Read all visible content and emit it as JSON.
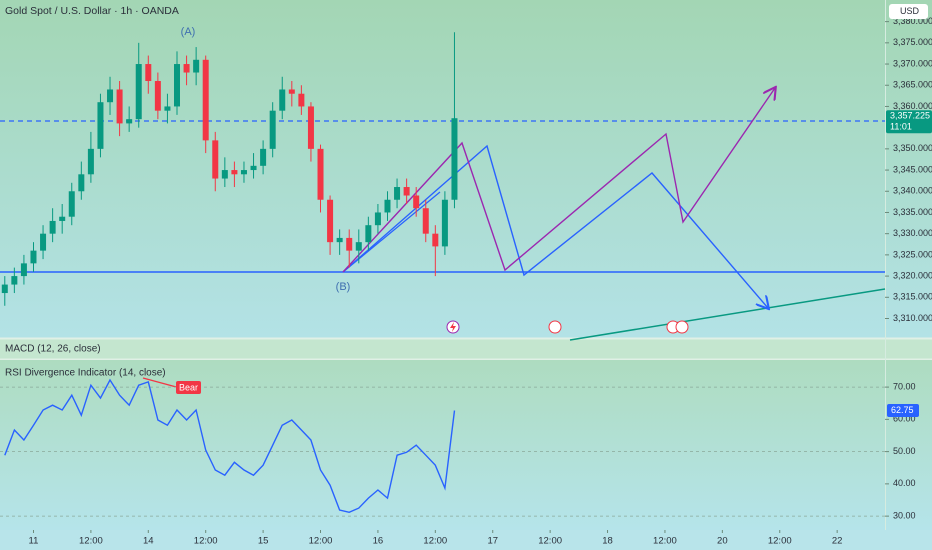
{
  "indicators": {
    "macd": "MACD (12, 26, close)"
  },
  "chart_data": [
    {
      "type": "candlestick",
      "title": "Gold Spot / U.S. Dollar · 1h · OANDA",
      "currency": "USD",
      "last_price": {
        "value": 3357.225,
        "label": "3,357.225"
      },
      "countdown": "11:01",
      "annotations": [
        "(A)",
        "(B)"
      ],
      "up_color": "#089981",
      "down_color": "#f23645",
      "xlim": [
        -7,
        178
      ],
      "ylim": [
        3305.4,
        3385.1
      ],
      "yticks": [
        {
          "value": 3310,
          "label": "3,310.000"
        },
        {
          "value": 3315,
          "label": "3,315.000"
        },
        {
          "value": 3320,
          "label": "3,320.000"
        },
        {
          "value": 3325,
          "label": "3,325.000"
        },
        {
          "value": 3330,
          "label": "3,330.000"
        },
        {
          "value": 3335,
          "label": "3,335.000"
        },
        {
          "value": 3340,
          "label": "3,340.000"
        },
        {
          "value": 3345,
          "label": "3,345.000"
        },
        {
          "value": 3350,
          "label": "3,350.000"
        },
        {
          "value": 3360,
          "label": "3,360.000"
        },
        {
          "value": 3365,
          "label": "3,365.000"
        },
        {
          "value": 3370,
          "label": "3,370.000"
        },
        {
          "value": 3375,
          "label": "3,375.000"
        },
        {
          "value": 3380,
          "label": "3,380.000"
        }
      ],
      "x": [
        -6,
        -4,
        -2,
        0,
        2,
        4,
        6,
        8,
        10,
        12,
        14,
        16,
        18,
        20,
        22,
        24,
        26,
        28,
        30,
        32,
        34,
        36,
        38,
        40,
        42,
        44,
        46,
        48,
        50,
        52,
        54,
        56,
        58,
        60,
        62,
        64,
        66,
        68,
        70,
        72,
        74,
        76,
        78,
        80,
        82,
        84,
        86,
        88
      ],
      "open": [
        3316,
        3318,
        3320,
        3323,
        3326,
        3330,
        3333,
        3334,
        3340,
        3344,
        3350,
        3361,
        3364,
        3356,
        3357,
        3370,
        3366,
        3359,
        3360,
        3370,
        3368,
        3371,
        3352,
        3343,
        3345,
        3344,
        3345,
        3346,
        3350,
        3359,
        3364,
        3363,
        3360,
        3350,
        3338,
        3328,
        3329,
        3326,
        3328,
        3332,
        3335,
        3338,
        3341,
        3339,
        3336,
        3330,
        3327,
        3338
      ],
      "high": [
        3320,
        3322,
        3325,
        3328,
        3332,
        3336,
        3337,
        3342,
        3347,
        3354,
        3363,
        3367,
        3366,
        3360,
        3375,
        3372,
        3368,
        3363,
        3373,
        3372,
        3374,
        3372,
        3354,
        3348,
        3347,
        3347,
        3349,
        3352,
        3361,
        3367,
        3366,
        3365,
        3361,
        3351,
        3339,
        3331,
        3331,
        3331,
        3334,
        3337,
        3340,
        3343,
        3343,
        3341,
        3338,
        3332,
        3340,
        3377.5
      ],
      "low": [
        3313,
        3316,
        3318,
        3321,
        3324,
        3328,
        3330,
        3332,
        3338,
        3342,
        3348,
        3358,
        3353,
        3354,
        3355,
        3363,
        3357,
        3356,
        3358,
        3365,
        3365,
        3349,
        3340,
        3341,
        3341,
        3342,
        3343,
        3344,
        3348,
        3357,
        3360,
        3358,
        3347,
        3335,
        3325,
        3325,
        3322,
        3323,
        3326,
        3330,
        3333,
        3336,
        3337,
        3334,
        3328,
        3320,
        3325,
        3336
      ],
      "close": [
        3318,
        3320,
        3323,
        3326,
        3330,
        3333,
        3334,
        3340,
        3344,
        3350,
        3361,
        3364,
        3356,
        3357,
        3370,
        3366,
        3359,
        3360,
        3370,
        3368,
        3371,
        3352,
        3343,
        3345,
        3344,
        3345,
        3346,
        3350,
        3359,
        3364,
        3363,
        3360,
        3350,
        3338,
        3328,
        3329,
        3326,
        3328,
        3332,
        3335,
        3338,
        3341,
        3339,
        3336,
        3330,
        3327,
        3338,
        3357.225
      ]
    },
    {
      "type": "line",
      "title": "RSI Divergence Indicator (14, close)",
      "annotation": "Bear",
      "xlim": [
        -7,
        178
      ],
      "ylim": [
        25.7,
        78.4
      ],
      "yticks": [
        {
          "value": 30,
          "label": "30.00"
        },
        {
          "value": 40,
          "label": "40.00"
        },
        {
          "value": 50,
          "label": "50.00"
        },
        {
          "value": 60,
          "label": "60.00"
        },
        {
          "value": 70,
          "label": "70.00"
        }
      ],
      "hlines": [
        70,
        50,
        30
      ],
      "xticks": [
        {
          "value": 0,
          "label": "11"
        },
        {
          "value": 12,
          "label": "12:00"
        },
        {
          "value": 24,
          "label": "14"
        },
        {
          "value": 36,
          "label": "12:00"
        },
        {
          "value": 48,
          "label": "15"
        },
        {
          "value": 60,
          "label": "12:00"
        },
        {
          "value": 72,
          "label": "16"
        },
        {
          "value": 84,
          "label": "12:00"
        },
        {
          "value": 96,
          "label": "17"
        },
        {
          "value": 108,
          "label": "12:00"
        },
        {
          "value": 120,
          "label": "18"
        },
        {
          "value": 132,
          "label": "12:00"
        },
        {
          "value": 144,
          "label": "20"
        },
        {
          "value": 156,
          "label": "12:00"
        },
        {
          "value": 168,
          "label": "22"
        }
      ],
      "x": [
        -6,
        -4,
        -2,
        0,
        2,
        4,
        6,
        8,
        10,
        12,
        14,
        16,
        18,
        20,
        22,
        24,
        26,
        28,
        30,
        32,
        34,
        36,
        38,
        40,
        42,
        44,
        46,
        48,
        50,
        52,
        54,
        56,
        58,
        60,
        62,
        64,
        66,
        68,
        70,
        72,
        74,
        76,
        78,
        80,
        82,
        84,
        86,
        88
      ],
      "series": [
        {
          "name": "RSI",
          "color": "#2962ff",
          "values": [
            48.9,
            56.7,
            53.6,
            58.2,
            62.9,
            64.4,
            62.9,
            67.5,
            61.3,
            70.6,
            66.6,
            72.2,
            67.5,
            64.4,
            70.6,
            71.6,
            59.8,
            58.2,
            62.9,
            59.8,
            62.9,
            50.5,
            44.3,
            42.7,
            46.7,
            44.3,
            42.7,
            45.8,
            52.0,
            58.2,
            59.8,
            56.7,
            53.6,
            44.3,
            39.6,
            31.9,
            31.2,
            32.5,
            35.6,
            38.1,
            35.6,
            48.9,
            49.8,
            52.0,
            48.9,
            45.8,
            38.7,
            62.75
          ]
        }
      ]
    }
  ]
}
